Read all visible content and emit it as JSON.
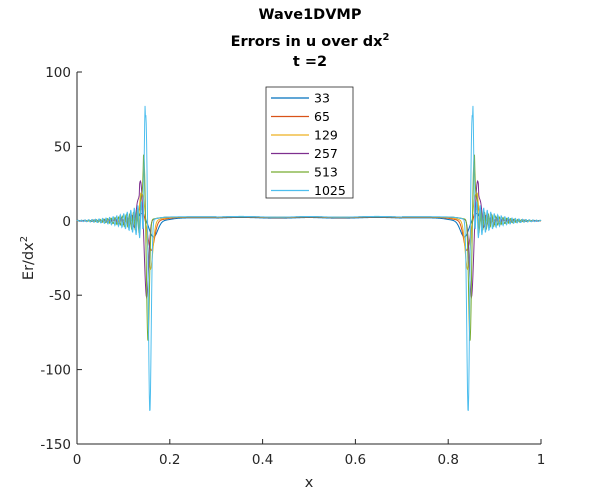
{
  "chart_data": {
    "type": "line",
    "title_lines": [
      "Wave1DVMP",
      "Errors in u over dx",
      "t =2"
    ],
    "title_superscript": "2",
    "xlabel": "x",
    "ylabel": "Er/dx",
    "ylabel_superscript": "2",
    "xlim": [
      0,
      1
    ],
    "ylim": [
      -150,
      100
    ],
    "xticks": [
      0,
      0.2,
      0.4,
      0.6,
      0.8,
      1
    ],
    "xtick_labels": [
      "0",
      "0.2",
      "0.4",
      "0.6",
      "0.8",
      "1"
    ],
    "yticks": [
      -150,
      -100,
      -50,
      0,
      50,
      100
    ],
    "ytick_labels": [
      "-150",
      "-100",
      "-50",
      "0",
      "50",
      "100"
    ],
    "grid": false,
    "legend_position": "top-center",
    "series": [
      {
        "name": "33",
        "color": "#0072BD",
        "trough_x": 0.165,
        "trough_y": -11,
        "peak_y": 5,
        "center_y": 2.0
      },
      {
        "name": "65",
        "color": "#D95319",
        "trough_x": 0.16,
        "trough_y": -20,
        "peak_y": 8,
        "center_y": 2.3
      },
      {
        "name": "129",
        "color": "#EDB120",
        "trough_x": 0.158,
        "trough_y": -33,
        "peak_y": 18,
        "center_y": 2.5
      },
      {
        "name": "257",
        "color": "#7E2F8E",
        "trough_x": 0.15,
        "trough_y": -52,
        "peak_y": 27,
        "center_y": 2.6
      },
      {
        "name": "513",
        "color": "#77AC30",
        "trough_x": 0.153,
        "trough_y": -82,
        "peak_y": 45,
        "center_y": 2.6
      },
      {
        "name": "1025",
        "color": "#4DBEEE",
        "trough_x": 0.157,
        "trough_y": -130,
        "peak_y": 72,
        "center_y": 2.7
      }
    ]
  }
}
